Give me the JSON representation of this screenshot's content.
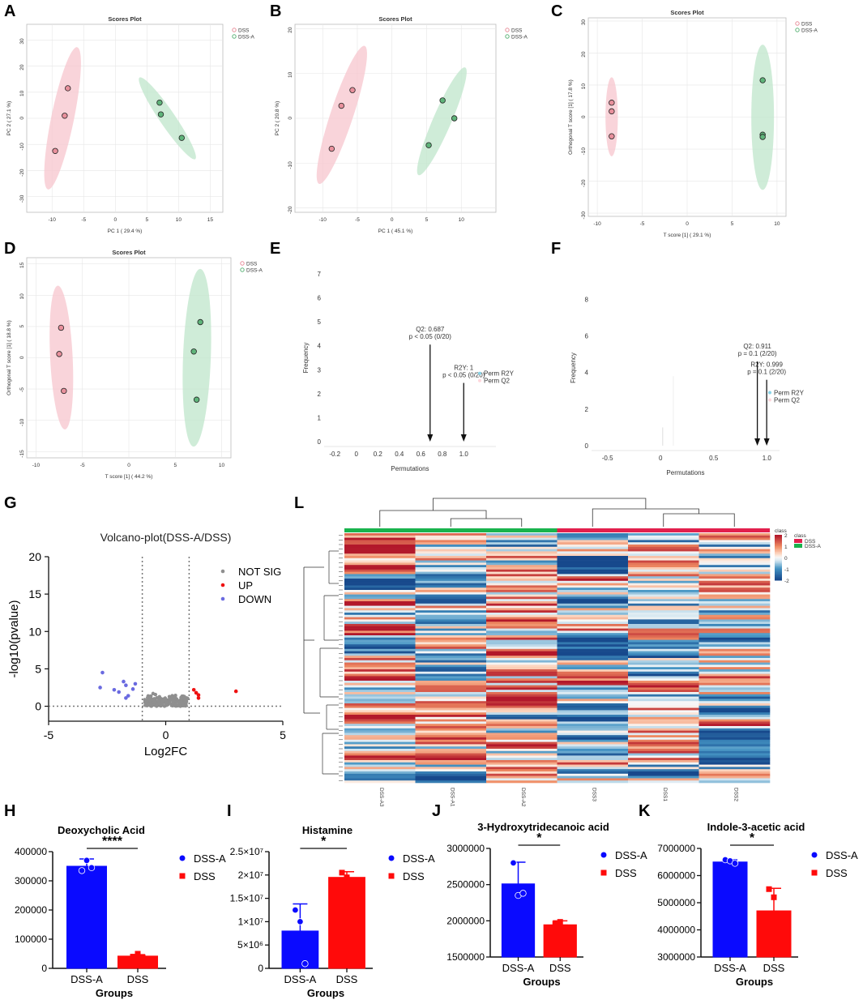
{
  "chart_data": [
    {
      "id": "A",
      "type": "scatter",
      "title": "Scores Plot",
      "xlabel": "PC 1 ( 29.4 %)",
      "ylabel": "PC 2 ( 27.1 %)",
      "xlim": [
        -14,
        17
      ],
      "ylim": [
        -36,
        36
      ],
      "xticks": [
        -10,
        -5,
        0,
        5,
        10,
        15
      ],
      "yticks": [
        -30,
        -20,
        -10,
        0,
        10,
        20,
        30
      ],
      "legend": [
        "DSS",
        "DSS-A"
      ],
      "series": [
        {
          "name": "DSS",
          "points": [
            [
              -7.5,
              11.5
            ],
            [
              -8,
              1
            ],
            [
              -9.5,
              -12.5
            ]
          ]
        },
        {
          "name": "DSS-A",
          "points": [
            [
              7,
              6
            ],
            [
              7.2,
              1.5
            ],
            [
              10.5,
              -7.5
            ]
          ]
        }
      ]
    },
    {
      "id": "B",
      "type": "scatter",
      "title": "Scores Plot",
      "xlabel": "PC 1 ( 45.1 %)",
      "ylabel": "PC 2 ( 20.8 %)",
      "xlim": [
        -14,
        15
      ],
      "ylim": [
        -21,
        21
      ],
      "xticks": [
        -10,
        -5,
        0,
        5,
        10
      ],
      "yticks": [
        -20,
        -10,
        0,
        10,
        20
      ],
      "legend": [
        "DSS",
        "DSS-A"
      ],
      "series": [
        {
          "name": "DSS",
          "points": [
            [
              -5.7,
              6.3
            ],
            [
              -7.3,
              2.8
            ],
            [
              -8.7,
              -6.8
            ]
          ]
        },
        {
          "name": "DSS-A",
          "points": [
            [
              7.3,
              4
            ],
            [
              9,
              0
            ],
            [
              5.3,
              -6
            ]
          ]
        }
      ]
    },
    {
      "id": "C",
      "type": "scatter",
      "title": "Scores Plot",
      "xlabel": "T score [1] ( 29.1 %)",
      "ylabel": "Orthogonal T score [1] ( 17.8 %)",
      "xlim": [
        -11,
        11
      ],
      "ylim": [
        -31,
        31
      ],
      "xticks": [
        -10,
        -5,
        0,
        5,
        10
      ],
      "yticks": [
        -30,
        -20,
        -10,
        0,
        10,
        20,
        30
      ],
      "legend": [
        "DSS",
        "DSS-A"
      ],
      "series": [
        {
          "name": "DSS",
          "points": [
            [
              -8.4,
              4.5
            ],
            [
              -8.4,
              1.8
            ],
            [
              -8.4,
              -6
            ]
          ]
        },
        {
          "name": "DSS-A",
          "points": [
            [
              8.4,
              11.5
            ],
            [
              8.4,
              -5.5
            ],
            [
              8.4,
              -6.2
            ]
          ]
        }
      ]
    },
    {
      "id": "D",
      "type": "scatter",
      "title": "Scores Plot",
      "xlabel": "T score [1] ( 44.2 %)",
      "ylabel": "Orthogonal T score [1] ( 18.8 %)",
      "xlim": [
        -11,
        11
      ],
      "ylim": [
        -16,
        16
      ],
      "xticks": [
        -10,
        -5,
        0,
        5,
        10
      ],
      "yticks": [
        -15,
        -10,
        -5,
        0,
        5,
        10,
        15
      ],
      "legend": [
        "DSS",
        "DSS-A"
      ],
      "series": [
        {
          "name": "DSS",
          "points": [
            [
              -7.3,
              4.8
            ],
            [
              -7.5,
              0.6
            ],
            [
              -7,
              -5.3
            ]
          ]
        },
        {
          "name": "DSS-A",
          "points": [
            [
              7.7,
              5.7
            ],
            [
              7,
              1
            ],
            [
              7.3,
              -6.7
            ]
          ]
        }
      ]
    },
    {
      "id": "E",
      "type": "bar",
      "title": "",
      "xlabel": "Permutations",
      "ylabel": "Frequency",
      "xlim": [
        -0.3,
        1.3
      ],
      "ylim": [
        0,
        7
      ],
      "xticks": [
        -0.2,
        0,
        0.2,
        0.4,
        0.6,
        0.8,
        1.0
      ],
      "yticks": [
        0,
        1,
        2,
        3,
        4,
        5,
        6,
        7
      ],
      "legend": [
        "Perm R2Y",
        "Perm Q2"
      ],
      "annotations": [
        {
          "x": 0.687,
          "lines": [
            "Q2: 0.687",
            "p < 0.05 (0/20)"
          ]
        },
        {
          "x": 1.0,
          "lines": [
            "R2Y: 1",
            "p < 0.05 (0/20)"
          ]
        }
      ]
    },
    {
      "id": "F",
      "type": "bar",
      "title": "",
      "xlabel": "Permutations",
      "ylabel": "Frequency",
      "xlim": [
        -0.65,
        1.12
      ],
      "ylim": [
        0,
        8.5
      ],
      "xticks": [
        -0.5,
        0,
        0.5,
        1.0
      ],
      "yticks": [
        0,
        2,
        4,
        6,
        8
      ],
      "legend": [
        "Perm R2Y",
        "Perm Q2"
      ],
      "annotations": [
        {
          "x": 0.911,
          "lines": [
            "Q2: 0.911",
            "p = 0.1 (2/20)"
          ]
        },
        {
          "x": 0.999,
          "lines": [
            "R2Y: 0.999",
            "p = 0.1 (2/20)"
          ]
        }
      ]
    },
    {
      "id": "G",
      "type": "scatter",
      "title": "Volcano-plot(DSS-A/DSS)",
      "xlabel": "Log2FC",
      "ylabel": "-log10(pvalue)",
      "xlim": [
        -5,
        5
      ],
      "ylim": [
        -2,
        20
      ],
      "xticks": [
        -5,
        0,
        5
      ],
      "yticks": [
        0,
        5,
        10,
        15,
        20
      ],
      "legend": [
        "NOT SIG",
        "UP",
        "DOWN"
      ],
      "thresholds_x": [
        -1,
        1
      ],
      "series": [
        {
          "name": "UP",
          "points": [
            [
              1.2,
              2.2
            ],
            [
              1.3,
              1.8
            ],
            [
              1.4,
              1.5
            ],
            [
              1.4,
              1.1
            ],
            [
              3,
              2
            ]
          ]
        },
        {
          "name": "DOWN",
          "points": [
            [
              -2.7,
              4.5
            ],
            [
              -2.8,
              2.5
            ],
            [
              -2.2,
              2.2
            ],
            [
              -1.8,
              3.3
            ],
            [
              -2,
              1.9
            ],
            [
              -1.6,
              1.4
            ],
            [
              -1.7,
              1.1
            ],
            [
              -1.4,
              2.3
            ],
            [
              -1.3,
              3
            ],
            [
              -1.7,
              2.8
            ]
          ]
        }
      ]
    },
    {
      "id": "L",
      "type": "heatmap",
      "title": "",
      "columns": [
        "DSS-A3",
        "DSS-A1",
        "DSS-A2",
        "DSS3",
        "DSS1",
        "DSS2"
      ],
      "legend_title": "class",
      "legend": [
        "DSS",
        "DSS-A"
      ],
      "color_range": [
        -2,
        2
      ],
      "colorbar_ticks": [
        2,
        1,
        0,
        -1,
        -2
      ]
    },
    {
      "id": "H",
      "type": "bar",
      "title": "Deoxycholic Acid",
      "xlabel": "Groups",
      "categories": [
        "DSS-A",
        "DSS"
      ],
      "values": [
        350000,
        42000
      ],
      "errors": [
        25000,
        5000
      ],
      "ylim": [
        0,
        400000
      ],
      "yticks": [
        "0",
        "100000",
        "200000",
        "300000",
        "400000"
      ],
      "ytick_values": [
        0,
        100000,
        200000,
        300000,
        400000
      ],
      "points": [
        [
          335000,
          370000,
          345000
        ],
        [
          40000,
          50000,
          38000
        ]
      ],
      "sig": "****",
      "legend": [
        "DSS-A",
        "DSS"
      ]
    },
    {
      "id": "I",
      "type": "bar",
      "title": "Histamine",
      "xlabel": "Groups",
      "categories": [
        "DSS-A",
        "DSS"
      ],
      "values": [
        8000000,
        19500000
      ],
      "errors": [
        5800000,
        1200000
      ],
      "ylim": [
        0,
        25000000
      ],
      "yticks": [
        "0",
        "5×10⁶",
        "1×10⁷",
        "1.5×10⁷",
        "2×10⁷",
        "2.5×10⁷"
      ],
      "ytick_values": [
        0,
        5000000,
        10000000,
        15000000,
        20000000,
        25000000
      ],
      "points": [
        [
          12500000,
          10000000,
          1000000
        ],
        [
          20500000,
          19500000,
          18500000
        ]
      ],
      "sig": "*",
      "legend": [
        "DSS-A",
        "DSS"
      ]
    },
    {
      "id": "J",
      "type": "bar",
      "title": "3-Hydroxytridecanoic acid",
      "xlabel": "Groups",
      "categories": [
        "DSS-A",
        "DSS"
      ],
      "values": [
        2510000,
        1945000
      ],
      "errors": [
        300000,
        55000
      ],
      "ylim": [
        1500000,
        3000000
      ],
      "yticks": [
        "1500000",
        "2000000",
        "2500000",
        "3000000"
      ],
      "ytick_values": [
        1500000,
        2000000,
        2500000,
        3000000
      ],
      "points": [
        [
          2800000,
          2350000,
          2380000
        ],
        [
          1960000,
          1985000,
          1910000
        ]
      ],
      "sig": "*",
      "legend": [
        "DSS-A",
        "DSS"
      ]
    },
    {
      "id": "K",
      "type": "bar",
      "title": "Indole-3-acetic acid",
      "xlabel": "Groups",
      "categories": [
        "DSS-A",
        "DSS"
      ],
      "values": [
        6500000,
        4700000
      ],
      "errors": [
        80000,
        830000
      ],
      "ylim": [
        3000000,
        7000000
      ],
      "yticks": [
        "3000000",
        "4000000",
        "5000000",
        "6000000",
        "7000000"
      ],
      "ytick_values": [
        3000000,
        4000000,
        5000000,
        6000000,
        7000000
      ],
      "points": [
        [
          6580000,
          6540000,
          6450000
        ],
        [
          5500000,
          5200000,
          4100000
        ]
      ],
      "sig": "*",
      "legend": [
        "DSS-A",
        "DSS"
      ]
    }
  ],
  "colors": {
    "dss_pink": "#e8909c",
    "dss_pink_fill": "#f7c6cd",
    "dssa_green": "#5fb47a",
    "dssa_green_fill": "#bfe5cb",
    "blue": "#0a0aff",
    "red": "#ff0a0a",
    "heat_high": "#b2182b",
    "heat_low": "#175b95",
    "bar_green": "#13a64a",
    "bar_red": "#e8123c"
  }
}
